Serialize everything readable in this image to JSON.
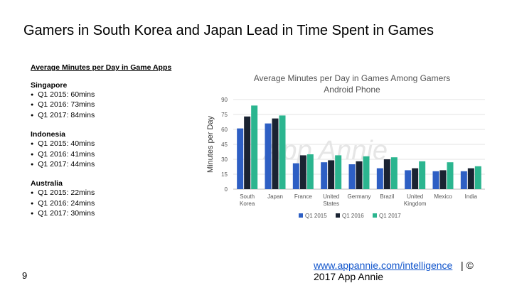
{
  "slide": {
    "title": "Gamers in South Korea and Japan Lead in Time Spent in Games",
    "page_number": "9"
  },
  "left_panel": {
    "heading": "Average Minutes per Day in Game Apps",
    "groups": [
      {
        "country": "Singapore",
        "items": [
          "Q1 2015: 60mins",
          "Q1 2016: 73mins",
          "Q1 2017: 84mins"
        ]
      },
      {
        "country": "Indonesia",
        "items": [
          "Q1 2015: 40mins",
          "Q1 2016: 41mins",
          "Q1 2017: 44mins"
        ]
      },
      {
        "country": "Australia",
        "items": [
          "Q1 2015: 22mins",
          "Q1 2016: 24mins",
          "Q1 2017: 30mins"
        ]
      }
    ]
  },
  "chart_data": {
    "type": "bar",
    "title": "Average Minutes per Day in Games Among Gamers",
    "subtitle": "Android Phone",
    "ylabel": "Minutes per Day",
    "xlabel": "",
    "ylim": [
      0,
      90
    ],
    "yticks": [
      0,
      15,
      30,
      45,
      60,
      75,
      90
    ],
    "grid": true,
    "legend_position": "bottom",
    "watermark": "App Annie",
    "categories": [
      "South Korea",
      "Japan",
      "France",
      "United States",
      "Germany",
      "Brazil",
      "United Kingdom",
      "Mexico",
      "India"
    ],
    "category_lines": [
      [
        "South",
        "Korea"
      ],
      [
        "Japan"
      ],
      [
        "France"
      ],
      [
        "United",
        "States"
      ],
      [
        "Germany"
      ],
      [
        "Brazil"
      ],
      [
        "United",
        "Kingdom"
      ],
      [
        "Mexico"
      ],
      [
        "India"
      ]
    ],
    "series": [
      {
        "name": "Q1 2015",
        "color": "#2e5fc4",
        "values": [
          61,
          66,
          26,
          27,
          25,
          21,
          19,
          18,
          18
        ]
      },
      {
        "name": "Q1 2016",
        "color": "#1a2332",
        "values": [
          73,
          71,
          34,
          29,
          28,
          30,
          21,
          19,
          21
        ]
      },
      {
        "name": "Q1 2017",
        "color": "#2bb58f",
        "values": [
          84,
          74,
          35,
          34,
          33,
          32,
          28,
          27,
          23
        ]
      }
    ]
  },
  "footer": {
    "link": "www.appannie.com/intelligence",
    "separator": " | ©",
    "copyright": "2017 App Annie"
  }
}
